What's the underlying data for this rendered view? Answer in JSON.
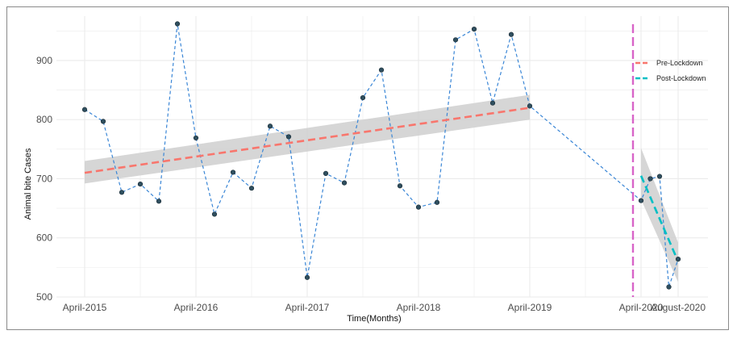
{
  "chart_data": {
    "type": "line",
    "xlabel": "Time(Months)",
    "ylabel": "Animal bite Cases",
    "ylim": [
      500,
      975
    ],
    "y_ticks": [
      500,
      600,
      700,
      800,
      900
    ],
    "x_ticks": [
      "April-2015",
      "April-2016",
      "April-2017",
      "April-2018",
      "April-2019",
      "April-2020",
      "August-2020"
    ],
    "grid": true,
    "legend_position": "top-right",
    "lockdown_marker": "April-2020",
    "colors": {
      "observed": "#3a86d6",
      "pre_lockdown": "#f8766d",
      "post_lockdown": "#00bfc4",
      "lockdown_line": "#d864c8",
      "ribbon": "#cfcfcf",
      "point": "#2f4f5f",
      "grid": "#ebebeb"
    },
    "series": [
      {
        "values": [
          {
            "x": "April-2015",
            "y": 817
          },
          {
            "x": "June-2015",
            "y": 797
          },
          {
            "x": "August-2015",
            "y": 677
          },
          {
            "x": "October-2015",
            "y": 691
          },
          {
            "x": "December-2015",
            "y": 662
          },
          {
            "x": "February-2016",
            "y": 962
          },
          {
            "x": "April-2016",
            "y": 769
          },
          {
            "x": "June-2016",
            "y": 640
          },
          {
            "x": "August-2016",
            "y": 711
          },
          {
            "x": "October-2016",
            "y": 684
          },
          {
            "x": "December-2016",
            "y": 789
          },
          {
            "x": "February-2017",
            "y": 771
          },
          {
            "x": "April-2017",
            "y": 533
          },
          {
            "x": "June-2017",
            "y": 709
          },
          {
            "x": "August-2017",
            "y": 693
          },
          {
            "x": "October-2017",
            "y": 837
          },
          {
            "x": "December-2017",
            "y": 884
          },
          {
            "x": "February-2018",
            "y": 688
          },
          {
            "x": "April-2018",
            "y": 652
          },
          {
            "x": "June-2018",
            "y": 660
          },
          {
            "x": "August-2018",
            "y": 935
          },
          {
            "x": "October-2018",
            "y": 953
          },
          {
            "x": "December-2018",
            "y": 828
          },
          {
            "x": "February-2019",
            "y": 944
          },
          {
            "x": "April-2019",
            "y": 823
          },
          {
            "x": "April-2020",
            "y": 663
          },
          {
            "x": "May-2020",
            "y": 700
          },
          {
            "x": "June-2020",
            "y": 704
          },
          {
            "x": "July-2020",
            "y": 517
          },
          {
            "x": "August-2020",
            "y": 564
          }
        ]
      },
      {
        "name": "Pre-Lockdown",
        "trend": [
          {
            "x": "April-2015",
            "y": 710
          },
          {
            "x": "April-2019",
            "y": 820
          }
        ],
        "ci_start": [
          692,
          730
        ],
        "ci_end": [
          800,
          842
        ]
      },
      {
        "name": "Post-Lockdown",
        "trend": [
          {
            "x": "April-2020",
            "y": 705
          },
          {
            "x": "August-2020",
            "y": 560
          }
        ],
        "ci_start": [
          665,
          752
        ],
        "ci_end": [
          525,
          592
        ]
      }
    ]
  }
}
